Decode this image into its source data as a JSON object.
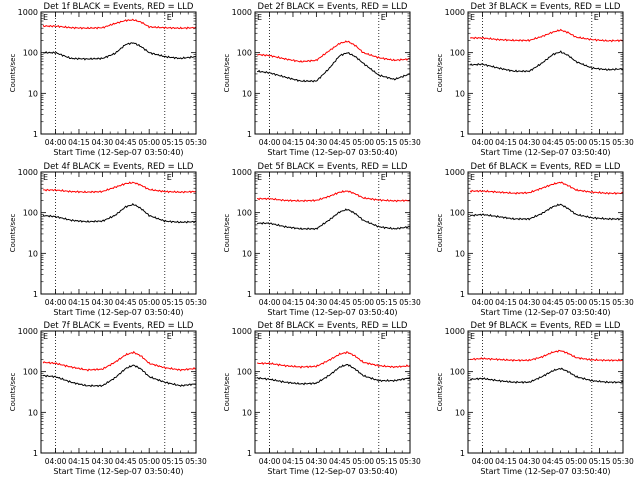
{
  "figure": {
    "x_ticks": [
      "04:00",
      "04:15",
      "04:30",
      "04:45",
      "05:00",
      "05:15",
      "05:30"
    ],
    "y_ticks": [
      "1",
      "10",
      "100",
      "1000"
    ],
    "ylabel": "Counts/sec",
    "xlabel": "Start Time (12-Sep-07 03:50:40)",
    "flag_labels": [
      "E",
      "E"
    ]
  },
  "chart_data": [
    {
      "type": "line",
      "title": "Det 1f BLACK = Events, RED = LLD",
      "xlabel": "Start Time (12-Sep-07 03:50:40)",
      "ylabel": "Counts/sec",
      "yscale": "log",
      "ylim": [
        1,
        1000
      ],
      "xlim": [
        "03:50:40",
        "05:30:00"
      ],
      "x": [
        "03:52",
        "04:00",
        "04:10",
        "04:20",
        "04:30",
        "04:38",
        "04:45",
        "04:50",
        "04:55",
        "05:00",
        "05:10",
        "05:20",
        "05:30"
      ],
      "series": [
        {
          "name": "Events",
          "color": "#000000",
          "values": [
            100,
            100,
            72,
            70,
            72,
            95,
            160,
            175,
            140,
            100,
            80,
            72,
            80
          ]
        },
        {
          "name": "LLD",
          "color": "#ff0000",
          "values": [
            450,
            450,
            410,
            400,
            410,
            520,
            620,
            640,
            560,
            430,
            410,
            400,
            410
          ]
        }
      ]
    },
    {
      "type": "line",
      "title": "Det 2f BLACK = Events, RED = LLD",
      "xlabel": "Start Time (12-Sep-07 03:50:40)",
      "ylabel": "Counts/sec",
      "yscale": "log",
      "ylim": [
        1,
        1000
      ],
      "xlim": [
        "03:50:40",
        "05:30:00"
      ],
      "x": [
        "03:52",
        "04:00",
        "04:10",
        "04:20",
        "04:30",
        "04:38",
        "04:45",
        "04:50",
        "04:55",
        "05:00",
        "05:10",
        "05:20",
        "05:30"
      ],
      "series": [
        {
          "name": "Events",
          "color": "#000000",
          "values": [
            35,
            32,
            25,
            20,
            20,
            40,
            85,
            100,
            80,
            55,
            28,
            22,
            30
          ]
        },
        {
          "name": "LLD",
          "color": "#ff0000",
          "values": [
            90,
            85,
            70,
            60,
            65,
            110,
            170,
            190,
            150,
            100,
            75,
            65,
            70
          ]
        }
      ]
    },
    {
      "type": "line",
      "title": "Det 3f BLACK = Events, RED = LLD",
      "xlabel": "Start Time (12-Sep-07 03:50:40)",
      "ylabel": "Counts/sec",
      "yscale": "log",
      "ylim": [
        1,
        1000
      ],
      "xlim": [
        "03:50:40",
        "05:30:00"
      ],
      "x": [
        "03:52",
        "04:00",
        "04:10",
        "04:20",
        "04:30",
        "04:38",
        "04:45",
        "04:50",
        "04:55",
        "05:00",
        "05:10",
        "05:20",
        "05:30"
      ],
      "series": [
        {
          "name": "Events",
          "color": "#000000",
          "values": [
            50,
            52,
            42,
            35,
            35,
            55,
            90,
            105,
            85,
            60,
            42,
            38,
            40
          ]
        },
        {
          "name": "LLD",
          "color": "#ff0000",
          "values": [
            230,
            230,
            210,
            200,
            200,
            250,
            320,
            360,
            310,
            240,
            210,
            195,
            200
          ]
        }
      ]
    },
    {
      "type": "line",
      "title": "Det 4f BLACK = Events, RED = LLD",
      "xlabel": "Start Time (12-Sep-07 03:50:40)",
      "ylabel": "Counts/sec",
      "yscale": "log",
      "ylim": [
        1,
        1000
      ],
      "xlim": [
        "03:50:40",
        "05:30:00"
      ],
      "x": [
        "03:52",
        "04:00",
        "04:10",
        "04:20",
        "04:30",
        "04:38",
        "04:45",
        "04:50",
        "04:55",
        "05:00",
        "05:10",
        "05:20",
        "05:30"
      ],
      "series": [
        {
          "name": "Events",
          "color": "#000000",
          "values": [
            85,
            80,
            65,
            60,
            62,
            85,
            140,
            160,
            125,
            85,
            62,
            58,
            60
          ]
        },
        {
          "name": "LLD",
          "color": "#ff0000",
          "values": [
            360,
            360,
            330,
            320,
            330,
            420,
            520,
            550,
            470,
            370,
            330,
            320,
            330
          ]
        }
      ]
    },
    {
      "type": "line",
      "title": "Det 5f BLACK = Events, RED = LLD",
      "xlabel": "Start Time (12-Sep-07 03:50:40)",
      "ylabel": "Counts/sec",
      "yscale": "log",
      "ylim": [
        1,
        1000
      ],
      "xlim": [
        "03:50:40",
        "05:30:00"
      ],
      "x": [
        "03:52",
        "04:00",
        "04:10",
        "04:20",
        "04:30",
        "04:38",
        "04:45",
        "04:50",
        "04:55",
        "05:00",
        "05:10",
        "05:20",
        "05:30"
      ],
      "series": [
        {
          "name": "Events",
          "color": "#000000",
          "values": [
            55,
            55,
            45,
            40,
            40,
            65,
            105,
            120,
            95,
            65,
            45,
            40,
            45
          ]
        },
        {
          "name": "LLD",
          "color": "#ff0000",
          "values": [
            220,
            220,
            200,
            195,
            200,
            250,
            320,
            340,
            290,
            230,
            205,
            195,
            200
          ]
        }
      ]
    },
    {
      "type": "line",
      "title": "Det 6f BLACK = Events, RED = LLD",
      "xlabel": "Start Time (12-Sep-07 03:50:40)",
      "ylabel": "Counts/sec",
      "yscale": "log",
      "ylim": [
        1,
        1000
      ],
      "xlim": [
        "03:50:40",
        "05:30:00"
      ],
      "x": [
        "03:52",
        "04:00",
        "04:10",
        "04:20",
        "04:30",
        "04:38",
        "04:45",
        "04:50",
        "04:55",
        "05:00",
        "05:10",
        "05:20",
        "05:30"
      ],
      "series": [
        {
          "name": "Events",
          "color": "#000000",
          "values": [
            85,
            90,
            80,
            70,
            70,
            95,
            140,
            160,
            125,
            90,
            75,
            70,
            70
          ]
        },
        {
          "name": "LLD",
          "color": "#ff0000",
          "values": [
            340,
            340,
            320,
            300,
            310,
            400,
            500,
            560,
            460,
            360,
            320,
            300,
            300
          ]
        }
      ]
    },
    {
      "type": "line",
      "title": "Det 7f BLACK = Events, RED = LLD",
      "xlabel": "Start Time (12-Sep-07 03:50:40)",
      "ylabel": "Counts/sec",
      "yscale": "log",
      "ylim": [
        1,
        1000
      ],
      "xlim": [
        "03:50:40",
        "05:30:00"
      ],
      "x": [
        "03:52",
        "04:00",
        "04:10",
        "04:20",
        "04:30",
        "04:38",
        "04:45",
        "04:50",
        "04:55",
        "05:00",
        "05:10",
        "05:20",
        "05:30"
      ],
      "series": [
        {
          "name": "Events",
          "color": "#000000",
          "values": [
            80,
            75,
            55,
            45,
            45,
            70,
            120,
            145,
            115,
            75,
            55,
            45,
            50
          ]
        },
        {
          "name": "LLD",
          "color": "#ff0000",
          "values": [
            170,
            160,
            130,
            110,
            115,
            170,
            260,
            300,
            240,
            160,
            125,
            110,
            120
          ]
        }
      ]
    },
    {
      "type": "line",
      "title": "Det 8f BLACK = Events, RED = LLD",
      "xlabel": "Start Time (12-Sep-07 03:50:40)",
      "ylabel": "Counts/sec",
      "yscale": "log",
      "ylim": [
        1,
        1000
      ],
      "xlim": [
        "03:50:40",
        "05:30:00"
      ],
      "x": [
        "03:52",
        "04:00",
        "04:10",
        "04:20",
        "04:30",
        "04:38",
        "04:45",
        "04:50",
        "04:55",
        "05:00",
        "05:10",
        "05:20",
        "05:30"
      ],
      "series": [
        {
          "name": "Events",
          "color": "#000000",
          "values": [
            70,
            65,
            55,
            50,
            52,
            80,
            130,
            150,
            115,
            80,
            60,
            60,
            70
          ]
        },
        {
          "name": "LLD",
          "color": "#ff0000",
          "values": [
            160,
            160,
            140,
            130,
            135,
            190,
            270,
            300,
            240,
            170,
            140,
            130,
            140
          ]
        }
      ]
    },
    {
      "type": "line",
      "title": "Det 9f BLACK = Events, RED = LLD",
      "xlabel": "Start Time (12-Sep-07 03:50:40)",
      "ylabel": "Counts/sec",
      "yscale": "log",
      "ylim": [
        1,
        1000
      ],
      "xlim": [
        "03:50:40",
        "05:30:00"
      ],
      "x": [
        "03:52",
        "04:00",
        "04:10",
        "04:20",
        "04:30",
        "04:38",
        "04:45",
        "04:50",
        "04:55",
        "05:00",
        "05:10",
        "05:20",
        "05:30"
      ],
      "series": [
        {
          "name": "Events",
          "color": "#000000",
          "values": [
            65,
            68,
            60,
            55,
            55,
            75,
            105,
            120,
            100,
            75,
            60,
            55,
            55
          ]
        },
        {
          "name": "LLD",
          "color": "#ff0000",
          "values": [
            200,
            210,
            200,
            190,
            190,
            230,
            300,
            330,
            280,
            220,
            195,
            190,
            190
          ]
        }
      ]
    }
  ]
}
